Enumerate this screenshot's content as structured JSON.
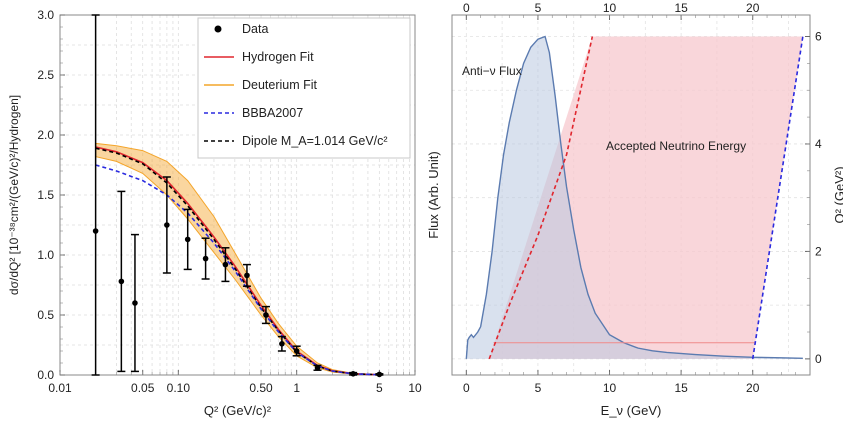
{
  "chart_data": [
    {
      "type": "line",
      "xscale": "log",
      "xlabel": "Q² (GeV/c)²",
      "ylabel": "dσ/dQ² [10⁻³⁸cm²/(GeV/c)²/Hydrogen]",
      "xlim": [
        0.01,
        10
      ],
      "ylim": [
        0,
        3.0
      ],
      "grid": true,
      "legend_position": "top-right",
      "xticks": [
        {
          "v": 0.01,
          "label": "0.01"
        },
        {
          "v": 0.05,
          "label": "0.05"
        },
        {
          "v": 0.1,
          "label": "0.10"
        },
        {
          "v": 0.5,
          "label": "0.50"
        },
        {
          "v": 1,
          "label": "1"
        },
        {
          "v": 5,
          "label": "5"
        },
        {
          "v": 10,
          "label": "10"
        }
      ],
      "yticks": [
        "0.0",
        "0.5",
        "1.0",
        "1.5",
        "2.0",
        "2.5",
        "3.0"
      ],
      "legend": [
        {
          "label": "Data",
          "color": "#000000",
          "style": "point"
        },
        {
          "label": "Hydrogen Fit",
          "color": "#e0262e",
          "style": "solid"
        },
        {
          "label": "Deuterium Fit",
          "color": "#f4a52a",
          "style": "solid"
        },
        {
          "label": "BBBA2007",
          "color": "#2a2adf",
          "style": "dashed"
        },
        {
          "label": "Dipole M_A=1.014 GeV/c²",
          "color": "#000000",
          "style": "dashed"
        }
      ],
      "data_points": [
        {
          "x": 0.02,
          "y": 1.2,
          "err": 1.8
        },
        {
          "x": 0.033,
          "y": 0.78,
          "err": 0.75
        },
        {
          "x": 0.043,
          "y": 0.6,
          "err": 0.57
        },
        {
          "x": 0.08,
          "y": 1.25,
          "err": 0.4
        },
        {
          "x": 0.12,
          "y": 1.13,
          "err": 0.25
        },
        {
          "x": 0.17,
          "y": 0.97,
          "err": 0.17
        },
        {
          "x": 0.25,
          "y": 0.92,
          "err": 0.14
        },
        {
          "x": 0.38,
          "y": 0.83,
          "err": 0.09
        },
        {
          "x": 0.55,
          "y": 0.5,
          "err": 0.07
        },
        {
          "x": 0.75,
          "y": 0.26,
          "err": 0.06
        },
        {
          "x": 1.0,
          "y": 0.2,
          "err": 0.04
        },
        {
          "x": 1.5,
          "y": 0.06,
          "err": 0.02
        },
        {
          "x": 3.0,
          "y": 0.01,
          "err": 0.01
        },
        {
          "x": 5.0,
          "y": 0.005,
          "err": 0.005
        }
      ],
      "series": [
        {
          "name": "Hydrogen Fit",
          "color": "#e0262e",
          "dash": "",
          "x": [
            0.02,
            0.03,
            0.05,
            0.08,
            0.12,
            0.2,
            0.3,
            0.5,
            0.7,
            1.0,
            1.5,
            2.0,
            3.0,
            5.0
          ],
          "y": [
            1.9,
            1.86,
            1.77,
            1.62,
            1.43,
            1.15,
            0.91,
            0.58,
            0.38,
            0.2,
            0.08,
            0.035,
            0.01,
            0.002
          ]
        },
        {
          "name": "Dipole M_A=1.014 GeV/c²",
          "color": "#000000",
          "dash": "4,3",
          "x": [
            0.02,
            0.03,
            0.05,
            0.08,
            0.12,
            0.2,
            0.3,
            0.5,
            0.7,
            1.0,
            1.5,
            2.0,
            3.0,
            5.0
          ],
          "y": [
            1.89,
            1.85,
            1.76,
            1.6,
            1.41,
            1.13,
            0.89,
            0.56,
            0.37,
            0.19,
            0.075,
            0.033,
            0.01,
            0.002
          ]
        },
        {
          "name": "BBBA2007",
          "color": "#2a2adf",
          "dash": "4,3",
          "x": [
            0.02,
            0.03,
            0.05,
            0.08,
            0.12,
            0.2,
            0.3,
            0.5,
            0.7,
            1.0,
            1.5,
            2.0,
            3.0,
            5.0
          ],
          "y": [
            1.75,
            1.7,
            1.62,
            1.5,
            1.35,
            1.1,
            0.87,
            0.55,
            0.36,
            0.19,
            0.075,
            0.033,
            0.01,
            0.002
          ]
        }
      ],
      "band": {
        "name": "Deuterium Fit",
        "color": "#f4a52a",
        "x": [
          0.02,
          0.03,
          0.05,
          0.08,
          0.12,
          0.2,
          0.3,
          0.5,
          0.7,
          1.0,
          1.5,
          2.0,
          3.0,
          5.0
        ],
        "upper": [
          1.93,
          1.91,
          1.87,
          1.78,
          1.62,
          1.32,
          1.02,
          0.64,
          0.43,
          0.24,
          0.1,
          0.045,
          0.014,
          0.003
        ],
        "lower": [
          1.82,
          1.78,
          1.68,
          1.5,
          1.3,
          1.02,
          0.8,
          0.5,
          0.32,
          0.16,
          0.06,
          0.025,
          0.007,
          0.001
        ]
      }
    },
    {
      "type": "area",
      "xlabel": "E_ν (GeV)",
      "ylabel_left": "Flux (Arb. Unit)",
      "ylabel_right": "Q² (GeV²)",
      "xlim": [
        -1,
        24
      ],
      "ylim_right": [
        -0.3,
        6.4
      ],
      "xticks_bottom": [
        "0",
        "5",
        "10",
        "15",
        "20"
      ],
      "xticks_top": [
        "0",
        "5",
        "10",
        "15",
        "20"
      ],
      "yticks_right": [
        "0",
        "2",
        "4",
        "6"
      ],
      "annotations": [
        "Anti−ν Flux",
        "Accepted Neutrino Energy"
      ],
      "flux": {
        "color": "#5b7bb0",
        "fill": "#b9c8e0",
        "x": [
          0,
          0.1,
          0.2,
          0.35,
          0.5,
          0.8,
          1.0,
          1.4,
          1.8,
          2.2,
          2.6,
          3.0,
          3.5,
          4.0,
          4.5,
          5.0,
          5.5,
          5.8,
          6.2,
          6.6,
          7.0,
          7.5,
          8.0,
          8.5,
          9.0,
          10.0,
          11.0,
          12.0,
          13.0,
          14.0,
          16.0,
          18.0,
          20.0,
          22.0,
          23.5
        ],
        "y": [
          0,
          0.35,
          0.4,
          0.45,
          0.4,
          0.5,
          0.6,
          1.2,
          2.0,
          3.0,
          3.8,
          4.4,
          5.0,
          5.5,
          5.8,
          5.95,
          6.0,
          5.7,
          4.9,
          4.0,
          3.2,
          2.4,
          1.7,
          1.2,
          0.85,
          0.45,
          0.3,
          0.2,
          0.15,
          0.12,
          0.08,
          0.05,
          0.03,
          0.02,
          0.01
        ]
      },
      "accepted_region": {
        "fill": "#f7c8cd",
        "boundary_points": [
          [
            1.6,
            0
          ],
          [
            8.8,
            6.0
          ],
          [
            23.5,
            6.0
          ],
          [
            20.0,
            0
          ]
        ],
        "left_edge": {
          "color": "#e0262e",
          "points": [
            [
              1.6,
              0
            ],
            [
              3,
              1.0
            ],
            [
              5,
              2.3
            ],
            [
              7,
              3.8
            ],
            [
              8.8,
              6.0
            ]
          ]
        },
        "right_edge": {
          "color": "#2a2adf",
          "points": [
            [
              20.0,
              0
            ],
            [
              23.5,
              6.0
            ]
          ]
        },
        "baseline_q2": 0.3,
        "baseline_color": "#f08a8a"
      }
    }
  ]
}
